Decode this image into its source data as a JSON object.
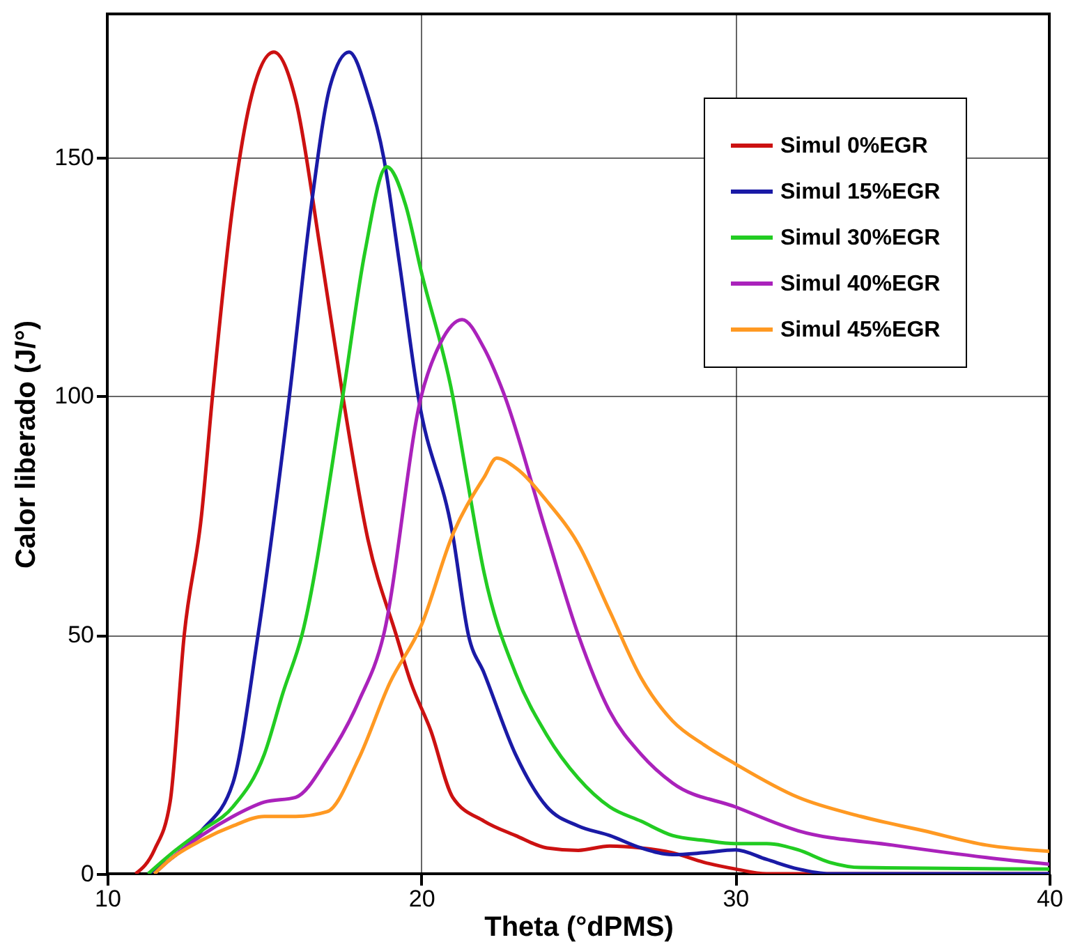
{
  "chart_data": {
    "type": "line",
    "xlabel": "Theta (°dPMS)",
    "ylabel": "Calor liberado (J/°)",
    "xlim": [
      10,
      40
    ],
    "xticks": [
      10,
      20,
      30,
      40
    ],
    "ylim": [
      0,
      180
    ],
    "yticks": [
      0,
      50,
      100,
      150
    ],
    "grid": true,
    "legend": "top right",
    "line_style": "solid",
    "marker": "none",
    "series": [
      {
        "name": "Simul 0%EGR",
        "color": "#cc1111",
        "x": [
          10.9,
          11.5,
          12,
          12.45,
          13,
          13.35,
          14,
          14.6,
          15.3,
          16,
          16.8,
          17.5,
          18.3,
          19.2,
          19.67,
          20.3,
          21,
          22,
          23,
          24,
          25,
          26,
          27,
          28,
          29,
          30,
          31,
          40
        ],
        "values": [
          0,
          5,
          15,
          50,
          75,
          100,
          140,
          163,
          172,
          162,
          130,
          100,
          70,
          50,
          40,
          30,
          16,
          11,
          8,
          5.4,
          4.9,
          5.8,
          5.4,
          4.4,
          2.4,
          1,
          0,
          0
        ]
      },
      {
        "name": "Simul 15%EGR",
        "color": "#1a1aa6",
        "x": [
          11.3,
          12,
          13,
          14,
          14.8,
          15.8,
          16.5,
          17.1,
          17.7,
          18.3,
          18.8,
          19.3,
          19.9,
          21,
          21.5,
          22,
          23,
          24,
          25,
          26,
          27,
          28,
          29,
          30,
          31,
          32,
          33,
          40
        ],
        "values": [
          0,
          3,
          9,
          19,
          50,
          100,
          140,
          165,
          172,
          163,
          150,
          128,
          100,
          71,
          50,
          42,
          25,
          14,
          10,
          8,
          5.4,
          4,
          4.4,
          5,
          3,
          1,
          0,
          0
        ]
      },
      {
        "name": "Simul 30%EGR",
        "color": "#22cc22",
        "x": [
          11.3,
          12,
          13,
          14,
          15,
          15.6,
          16.2,
          17.5,
          18.2,
          18.9,
          19.5,
          20,
          21,
          21.45,
          22,
          23,
          24,
          25,
          26,
          27,
          28,
          29,
          30,
          31,
          32,
          33,
          34,
          40
        ],
        "values": [
          0,
          4,
          9,
          14,
          25,
          38,
          50,
          100,
          130,
          148,
          140,
          126,
          100,
          83,
          63,
          42,
          29,
          20,
          14,
          11,
          8,
          7,
          6.3,
          6.3,
          5,
          2.4,
          1.3,
          1
        ]
      },
      {
        "name": "Simul 40%EGR",
        "color": "#aa22bb",
        "x": [
          11.5,
          12,
          13,
          14,
          15,
          16,
          17,
          18,
          18.8,
          20,
          20.6,
          21.3,
          22,
          22.6,
          24,
          25,
          26,
          27,
          28,
          30,
          32,
          35,
          38,
          40
        ],
        "values": [
          0,
          3,
          8,
          12,
          15,
          16,
          24,
          36,
          50,
          100,
          111,
          116,
          110,
          101,
          71,
          50,
          34,
          25,
          19,
          14,
          9,
          6,
          3.4,
          2
        ]
      },
      {
        "name": "Simul 45%EGR",
        "color": "#ff9922",
        "x": [
          11.5,
          12,
          13,
          14,
          15,
          16,
          17,
          18,
          19,
          20,
          21,
          22,
          22.4,
          23,
          24,
          25,
          26,
          27,
          28,
          29,
          30,
          32,
          34,
          36,
          38,
          40
        ],
        "values": [
          0,
          3,
          7,
          10,
          12,
          12,
          13,
          24,
          40,
          52,
          71,
          83,
          87,
          85,
          78,
          69,
          55,
          41,
          32,
          27,
          23,
          16,
          12,
          9,
          6,
          4.7
        ]
      }
    ]
  }
}
